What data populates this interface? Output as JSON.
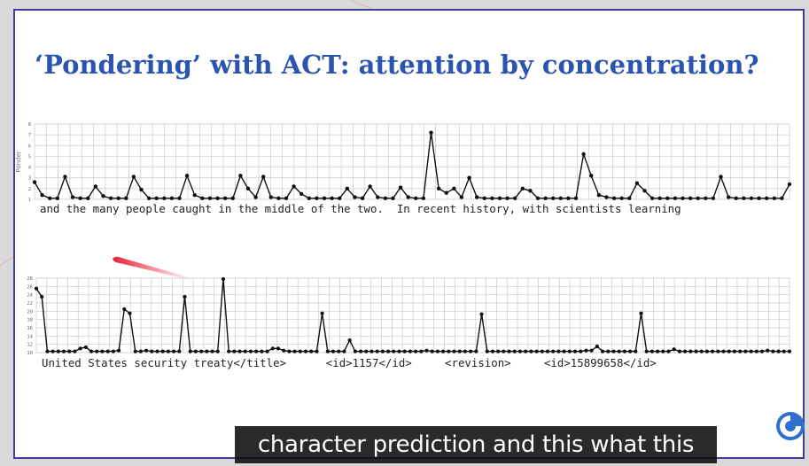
{
  "slide": {
    "title": "‘Pondering’ with ACT: attention by concentration?",
    "title_color": "#2b54b0",
    "logo_icon": "deepmind-logo-icon"
  },
  "caption": {
    "text": "character prediction and this what this"
  },
  "chart_data": [
    {
      "type": "line",
      "ylabel": "Ponder",
      "ylim": [
        1,
        8
      ],
      "y_ticks": [
        "1",
        "2",
        "3",
        "4",
        "5",
        "6",
        "7",
        "8"
      ],
      "grid": true,
      "tokens_label": "and the many people caught in the middle of the two.  In recent history, with scientists learning",
      "values": [
        2.6,
        1.4,
        1.1,
        1.1,
        3.1,
        1.2,
        1.1,
        1.1,
        2.2,
        1.3,
        1.1,
        1.1,
        1.1,
        3.1,
        1.9,
        1.1,
        1.1,
        1.1,
        1.1,
        1.1,
        3.2,
        1.4,
        1.1,
        1.1,
        1.1,
        1.1,
        1.1,
        3.2,
        2.0,
        1.2,
        3.1,
        1.2,
        1.1,
        1.1,
        2.2,
        1.5,
        1.1,
        1.1,
        1.1,
        1.1,
        1.1,
        2.0,
        1.2,
        1.1,
        2.2,
        1.2,
        1.1,
        1.1,
        2.1,
        1.2,
        1.1,
        1.1,
        7.2,
        2.0,
        1.6,
        2.0,
        1.2,
        3.0,
        1.2,
        1.1,
        1.1,
        1.1,
        1.1,
        1.1,
        2.0,
        1.8,
        1.1,
        1.1,
        1.1,
        1.1,
        1.1,
        1.1,
        5.2,
        3.2,
        1.4,
        1.2,
        1.1,
        1.1,
        1.1,
        2.5,
        1.8,
        1.1,
        1.1,
        1.1,
        1.1,
        1.1,
        1.1,
        1.1,
        1.1,
        1.1,
        3.1,
        1.2,
        1.1,
        1.1,
        1.1,
        1.1,
        1.1,
        1.1,
        1.1,
        2.4
      ]
    },
    {
      "type": "line",
      "ylabel": "",
      "ylim": [
        10,
        28
      ],
      "y_ticks": [
        "10",
        "12",
        "14",
        "16",
        "18",
        "20",
        "22",
        "24",
        "26",
        "28"
      ],
      "grid": true,
      "tokens_label": "United States security treaty</title>      <id>1157</id>     <revision>     <id>15899658</id>",
      "values": [
        25.5,
        23.5,
        10.3,
        10.3,
        10.3,
        10.3,
        10.3,
        10.3,
        11.0,
        11.3,
        10.3,
        10.3,
        10.3,
        10.3,
        10.3,
        10.5,
        20.5,
        19.5,
        10.3,
        10.3,
        10.5,
        10.3,
        10.3,
        10.3,
        10.3,
        10.3,
        10.3,
        23.5,
        10.3,
        10.3,
        10.3,
        10.3,
        10.3,
        10.3,
        27.8,
        10.3,
        10.3,
        10.3,
        10.3,
        10.3,
        10.3,
        10.3,
        10.3,
        11.0,
        11.0,
        10.5,
        10.3,
        10.3,
        10.3,
        10.3,
        10.3,
        10.3,
        19.5,
        10.3,
        10.3,
        10.3,
        10.3,
        13.0,
        10.3,
        10.3,
        10.3,
        10.3,
        10.3,
        10.3,
        10.3,
        10.3,
        10.3,
        10.3,
        10.3,
        10.3,
        10.3,
        10.5,
        10.3,
        10.3,
        10.3,
        10.3,
        10.3,
        10.3,
        10.3,
        10.3,
        10.3,
        19.3,
        10.3,
        10.3,
        10.3,
        10.3,
        10.3,
        10.3,
        10.3,
        10.3,
        10.3,
        10.3,
        10.3,
        10.3,
        10.3,
        10.3,
        10.3,
        10.3,
        10.3,
        10.3,
        10.5,
        10.5,
        11.5,
        10.3,
        10.3,
        10.3,
        10.3,
        10.3,
        10.3,
        10.3,
        19.5,
        10.3,
        10.3,
        10.3,
        10.3,
        10.3,
        10.8,
        10.3,
        10.3,
        10.3,
        10.3,
        10.3,
        10.3,
        10.3,
        10.3,
        10.3,
        10.3,
        10.3,
        10.3,
        10.3,
        10.3,
        10.3,
        10.3,
        10.5,
        10.3,
        10.3,
        10.3,
        10.3
      ]
    }
  ]
}
